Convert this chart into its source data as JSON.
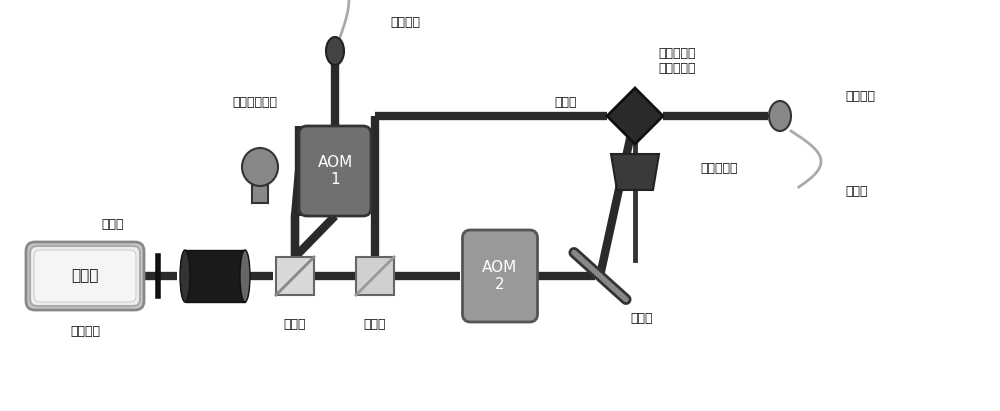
{
  "bg_color": "#ffffff",
  "label_color": "#111111",
  "labels": {
    "laser": "激光器",
    "isolator": "光隔离器",
    "bs1": "分光镜",
    "bs2": "分光镜",
    "hwp": "半波片",
    "aom1": "AOM\n1",
    "aom2": "AOM\n2",
    "power_monitor": "激光功率监测",
    "fiber_coupler1": "光纤耦合",
    "fiber_coupler2": "光纤耦合",
    "fiber1": "光纤一",
    "fiber2": "光纤二",
    "mirror": "反射镜",
    "rot_mirror": "电控高精度\n旋转反射镜",
    "stage": "电动位移台"
  },
  "beam_lw": 6,
  "figsize": [
    10.0,
    4.11
  ],
  "dpi": 100
}
